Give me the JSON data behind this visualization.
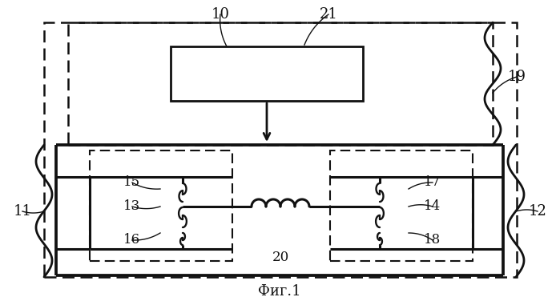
{
  "fig_width": 6.99,
  "fig_height": 3.76,
  "dpi": 100,
  "bg_color": "#ffffff",
  "lc": "#111111",
  "caption": "Фиг.1",
  "label_fontsize": 12,
  "caption_fontsize": 13,
  "lw_dash": 1.5,
  "lw_thick": 2.2,
  "lw_thin": 1.4
}
